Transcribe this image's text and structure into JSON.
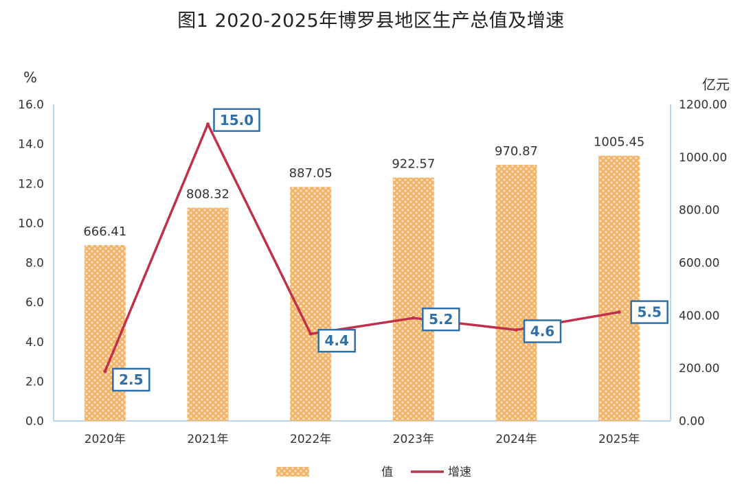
{
  "title": "图1 2020-2025年博罗县地区生产总值及增速",
  "chart_data": {
    "type": "bar+line",
    "categories": [
      "2020年",
      "2021年",
      "2022年",
      "2023年",
      "2024年",
      "2025年"
    ],
    "left_axis": {
      "label": "%",
      "min": 0,
      "max": 16,
      "step": 2,
      "ticks": [
        "0.0",
        "2.0",
        "4.0",
        "6.0",
        "8.0",
        "10.0",
        "12.0",
        "14.0",
        "16.0"
      ]
    },
    "right_axis": {
      "label": "亿元",
      "min": 0,
      "max": 1200,
      "step": 200,
      "ticks": [
        "0.00",
        "200.00",
        "400.00",
        "600.00",
        "800.00",
        "1000.00",
        "1200.00"
      ]
    },
    "series": [
      {
        "name": "",
        "type": "bar",
        "axis": "right",
        "values": [
          666.41,
          808.32,
          887.05,
          922.57,
          970.87,
          1005.45
        ],
        "labels": [
          "666.41",
          "808.32",
          "887.05",
          "922.57",
          "970.87",
          "1005.45"
        ]
      },
      {
        "name": "增速",
        "type": "line",
        "axis": "left",
        "values": [
          2.5,
          15.0,
          4.4,
          5.2,
          4.6,
          5.5
        ],
        "labels": [
          "2.5",
          "15.0",
          "4.4",
          "5.2",
          "4.6",
          "5.5"
        ]
      }
    ],
    "legend": {
      "position": "bottom",
      "entries": [
        {
          "label": "值",
          "type": "bar"
        },
        {
          "label": "增速",
          "type": "line"
        }
      ]
    },
    "grid": false,
    "colors": {
      "bar": "#f3b46a",
      "bar_pattern": "#fde6c8",
      "line": "#c0304a",
      "label_box_border": "#2e6fa8",
      "label_box_text": "#2e6fa8",
      "axis": "#a8c8e4"
    }
  }
}
